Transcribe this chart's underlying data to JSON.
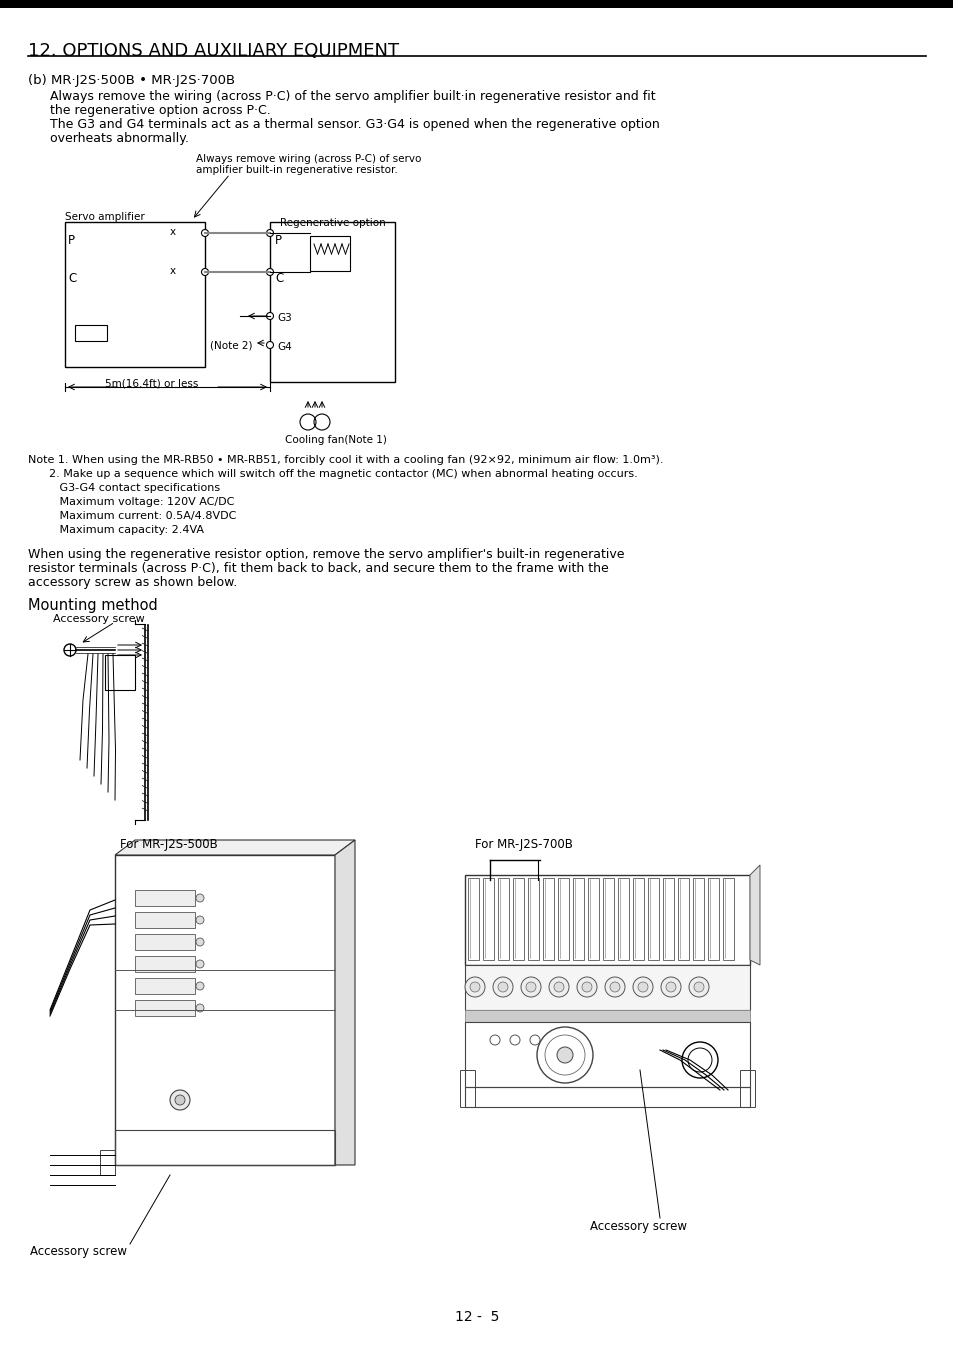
{
  "page_title": "12. OPTIONS AND AUXILIARY EQUIPMENT",
  "background_color": "#ffffff",
  "text_color": "#000000",
  "section_b_title": "(b) MR·J2S·500B • MR·J2S·700B",
  "para1_line1": "Always remove the wiring (across P·C) of the servo amplifier built·in regenerative resistor and fit",
  "para1_line2": "the regenerative option across P·C.",
  "para2_line1": "The G3 and G4 terminals act as a thermal sensor. G3·G4 is opened when the regenerative option",
  "para2_line2": "overheats abnormally.",
  "note1": "Note 1. When using the MR-RB50 • MR-RB51, forcibly cool it with a cooling fan (92×92, minimum air flow: 1.0m³).",
  "note2": "      2. Make up a sequence which will switch off the magnetic contactor (MC) when abnormal heating occurs.",
  "note2a": "         G3-G4 contact specifications",
  "note2b": "         Maximum voltage: 120V AC/DC",
  "note2c": "         Maximum current: 0.5A/4.8VDC",
  "note2d": "         Maximum capacity: 2.4VA",
  "mounting_title": "Mounting method",
  "label_accessory_screw_top": "Accessory screw",
  "label_for_500b": "For MR-J2S-500B",
  "label_for_700b": "For MR-J2S-700B",
  "label_accessory_screw_bottom_left": "Accessory screw",
  "label_accessory_screw_bottom_right": "Accessory screw",
  "page_number": "12 -  5",
  "diagram_label_servo": "Servo amplifier",
  "diagram_label_always_line1": "Always remove wiring (across P-C) of servo",
  "diagram_label_always_line2": "amplifier built-in regenerative resistor.",
  "diagram_label_regen": "Regenerative option",
  "diagram_label_note2": "(Note 2)",
  "diagram_label_g3": "G3",
  "diagram_label_g4": "G4",
  "diagram_label_p_left": "P",
  "diagram_label_c_left": "C",
  "diagram_label_p_right": "P",
  "diagram_label_c_right": "C",
  "diagram_label_5m": "5m(16.4ft) or less",
  "diagram_label_cooling": "Cooling fan(Note 1)",
  "main_para_line1": "When using the regenerative resistor option, remove the servo amplifier's built-in regenerative",
  "main_para_line2": "resistor terminals (across P·C), fit them back to back, and secure them to the frame with the",
  "main_para_line3": "accessory screw as shown below."
}
